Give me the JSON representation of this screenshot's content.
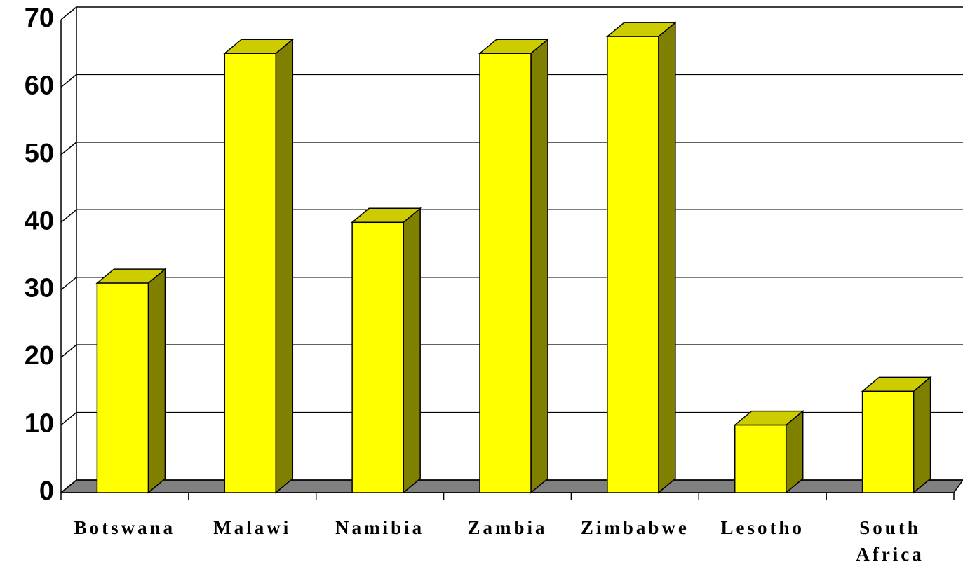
{
  "chart_data": {
    "type": "bar3d",
    "categories": [
      "Botswana",
      "Malawi",
      "Namibia",
      "Zambia",
      "Zimbabwe",
      "Lesotho",
      "South Africa"
    ],
    "values": [
      31,
      65,
      40,
      65,
      67.5,
      10,
      15
    ],
    "color": "#ffff00",
    "top_color": "#cccc00",
    "side_color": "#808000",
    "floor_color": "#808080",
    "ylim": [
      0,
      70
    ],
    "yticks": [
      0,
      10,
      20,
      30,
      40,
      50,
      60,
      70
    ],
    "grid": true
  }
}
